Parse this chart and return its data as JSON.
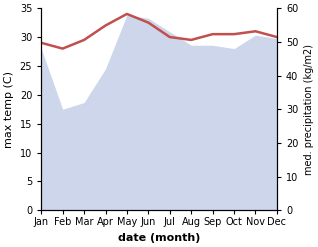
{
  "months": [
    "Jan",
    "Feb",
    "Mar",
    "Apr",
    "May",
    "Jun",
    "Jul",
    "Aug",
    "Sep",
    "Oct",
    "Nov",
    "Dec"
  ],
  "x": [
    0,
    1,
    2,
    3,
    4,
    5,
    6,
    7,
    8,
    9,
    10,
    11
  ],
  "temperature": [
    29,
    28,
    29.5,
    32,
    34,
    32.5,
    30,
    29.5,
    30.5,
    30.5,
    31,
    30
  ],
  "precipitation": [
    48,
    30,
    32,
    42,
    58,
    57,
    53,
    49,
    49,
    48,
    52,
    51
  ],
  "temp_ylim": [
    0,
    35
  ],
  "precip_ylim": [
    0,
    60
  ],
  "temp_color": "#c0504d",
  "precip_fill_color": "#c5cfe8",
  "bg_color": "#ffffff",
  "xlabel": "date (month)",
  "ylabel_left": "max temp (C)",
  "ylabel_right": "med. precipitation (kg/m2)",
  "temp_linewidth": 1.8,
  "precip_alpha": 0.85,
  "tick_fontsize": 7,
  "label_fontsize": 8
}
